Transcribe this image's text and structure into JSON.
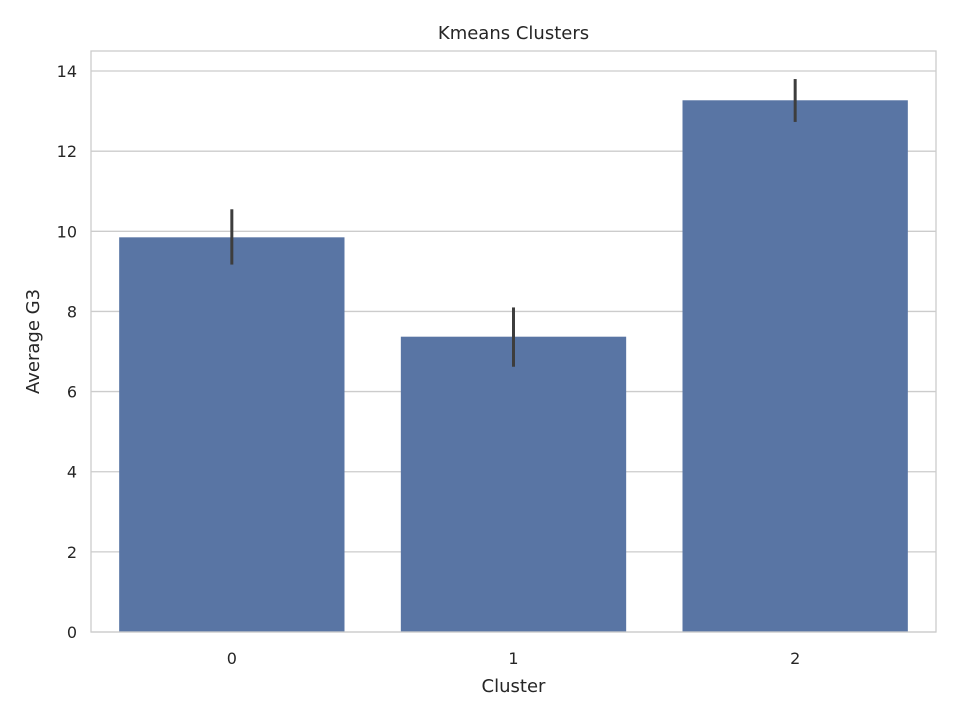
{
  "chart_data": {
    "type": "bar",
    "title": "Kmeans Clusters",
    "xlabel": "Cluster",
    "ylabel": "Average G3",
    "categories": [
      "0",
      "1",
      "2"
    ],
    "values": [
      9.85,
      7.37,
      13.27
    ],
    "error_low": [
      9.17,
      6.62,
      12.73
    ],
    "error_high": [
      10.55,
      8.1,
      13.8
    ],
    "ylim": [
      0,
      14.5
    ],
    "yticks": [
      0,
      2,
      4,
      6,
      8,
      10,
      12,
      14
    ],
    "grid": "horizontal",
    "bar_color": "#5975a4",
    "errorbar_color": "#3d3d3d"
  }
}
